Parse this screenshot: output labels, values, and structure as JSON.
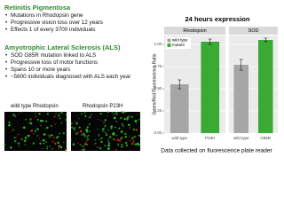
{
  "slide": {
    "sections": [
      {
        "heading": "Retinitis Pigmentosa",
        "bullets": [
          "Mutations in Rhodopsin gene",
          "Progressive vision loss over 12 years",
          "Effects 1 of every 3700 individuals"
        ]
      },
      {
        "heading": "Amyotrophic Lateral Sclerosis (ALS)",
        "bullets": [
          "SOD G85R mutation linked to ALS",
          "Progressive loss of motor functions",
          "Spans 10 or more years",
          "~5600 individuals diagnosed with ALS each year"
        ]
      }
    ],
    "images": [
      "wild type Rhodopsin",
      "Rhodopsin P23H"
    ],
    "caption": "Data collected on fluorescence plate reader"
  },
  "chart_data": [
    {
      "type": "bar",
      "title": "24 hours expression",
      "ylabel": "Green/Red Fluorescence Ratio",
      "facet": "Rhodopsin",
      "categories": [
        "wild type",
        "P23H"
      ],
      "series": [
        {
          "name": "wild type",
          "color": "#a6a6a6",
          "values": [
            0.55,
            null
          ],
          "errors": [
            0.05,
            null
          ]
        },
        {
          "name": "mutant",
          "color": "#3aaa35",
          "values": [
            null,
            1.03
          ],
          "errors": [
            null,
            0.03
          ]
        }
      ],
      "ylim": [
        0,
        1.1
      ],
      "yticks": [
        {
          "value": 0,
          "label": "0.00"
        },
        {
          "value": 0.25,
          "label": "0.25"
        },
        {
          "value": 0.5,
          "label": "0.50"
        },
        {
          "value": 0.75,
          "label": "0.75"
        },
        {
          "value": 1,
          "label": "1.00"
        }
      ],
      "grid": true,
      "legend": "top-left"
    },
    {
      "type": "bar",
      "facet": "SOD",
      "categories": [
        "wild type",
        "G85R"
      ],
      "values": [
        0.77,
        1.05
      ],
      "errors": [
        0.06,
        0.02
      ],
      "colors": [
        "#a6a6a6",
        "#3aaa35"
      ],
      "ylim": [
        0,
        1.1
      ],
      "yticks": [
        0,
        0.25,
        0.5,
        0.75,
        1
      ],
      "grid": true
    }
  ]
}
